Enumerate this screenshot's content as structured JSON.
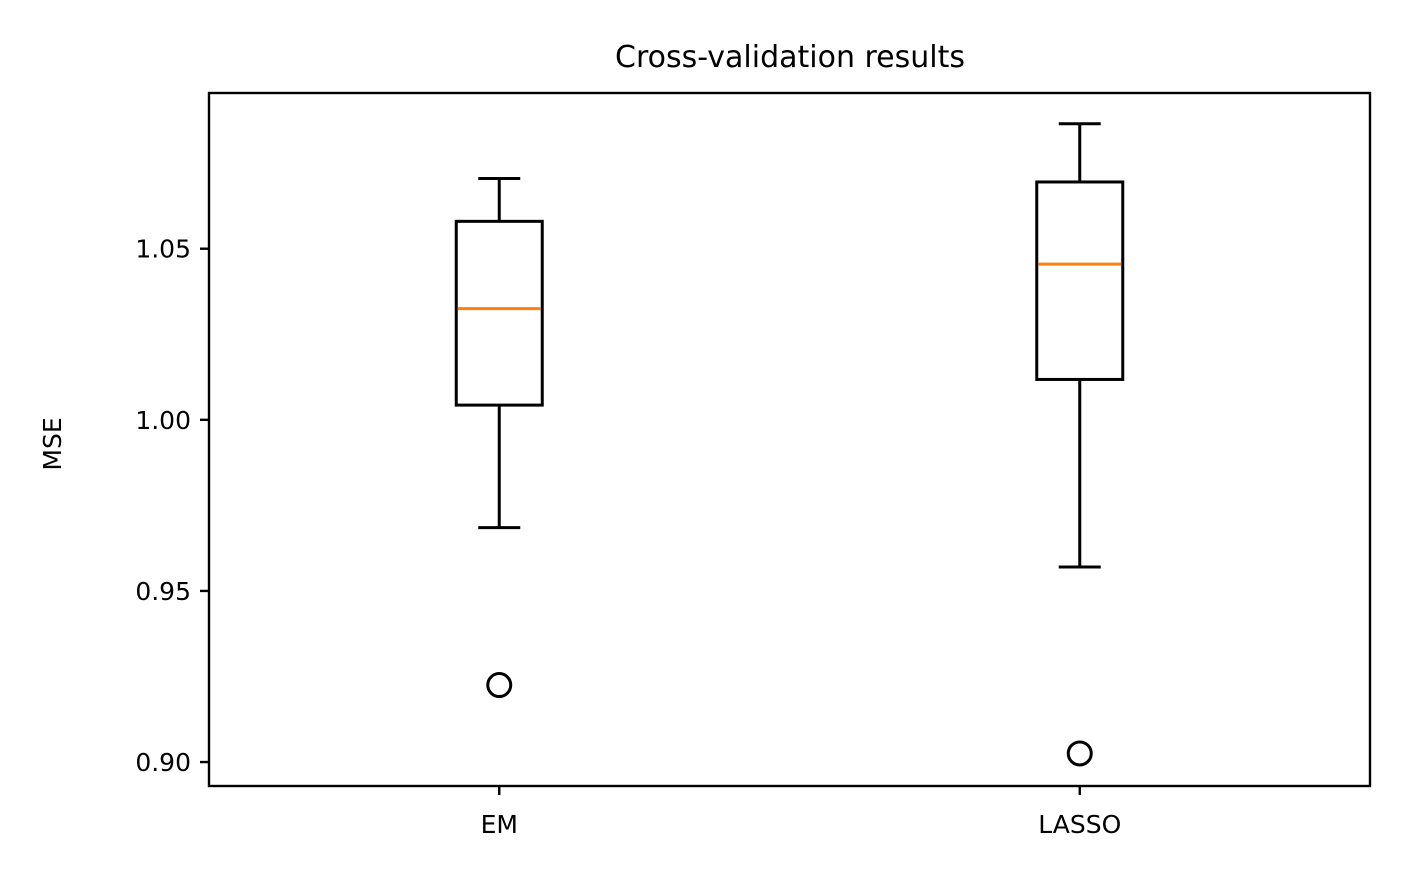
{
  "chart_data": {
    "type": "box",
    "title": "Cross-validation results",
    "xlabel": "",
    "ylabel": "MSE",
    "categories": [
      "EM",
      "LASSO"
    ],
    "ylim": [
      0.893,
      1.0955
    ],
    "yticks": [
      0.9,
      0.95,
      1.0,
      1.05
    ],
    "ytick_labels": [
      "0.90",
      "0.95",
      "1.00",
      "1.05"
    ],
    "boxes": [
      {
        "category": "EM",
        "whisker_low": 0.9685,
        "q1": 1.0043,
        "median": 1.0325,
        "q3": 1.058,
        "whisker_high": 1.0705,
        "outliers": [
          0.9225
        ]
      },
      {
        "category": "LASSO",
        "whisker_low": 0.957,
        "q1": 1.0118,
        "median": 1.0455,
        "q3": 1.0695,
        "whisker_high": 1.0865,
        "outliers": [
          0.9025
        ]
      }
    ],
    "grid": false,
    "legend": "none"
  },
  "colors": {
    "box": "#000000",
    "median": "#ff7f0e",
    "background": "#ffffff"
  }
}
